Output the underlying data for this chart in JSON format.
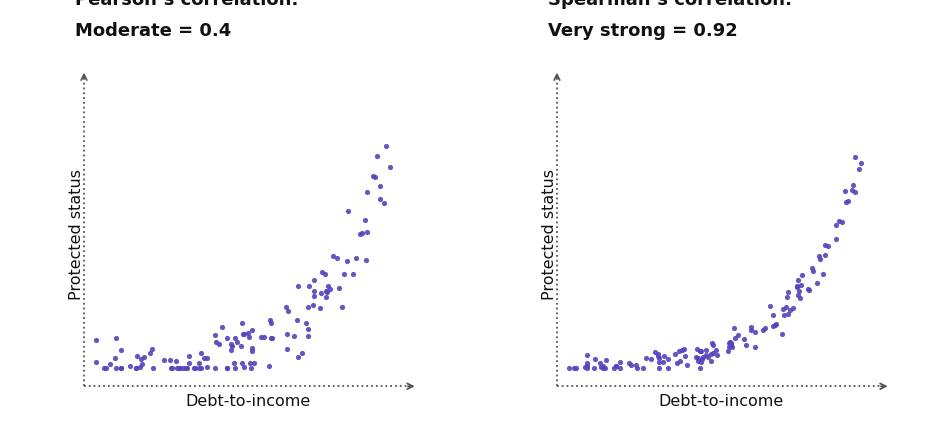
{
  "title_left_line1": "Pearson’s correlation:",
  "title_left_line2": "Moderate = 0.4",
  "title_right_line1": "Spearman’s correlation:",
  "title_right_line2": "Very strong = 0.92",
  "xlabel": "Debt-to-income",
  "ylabel": "Protected status",
  "dot_color": "#5544bb",
  "dot_size": 14,
  "dot_alpha": 0.9,
  "background_color": "#ffffff",
  "title_fontsize": 13,
  "label_fontsize": 11.5,
  "axis_color": "#555555"
}
